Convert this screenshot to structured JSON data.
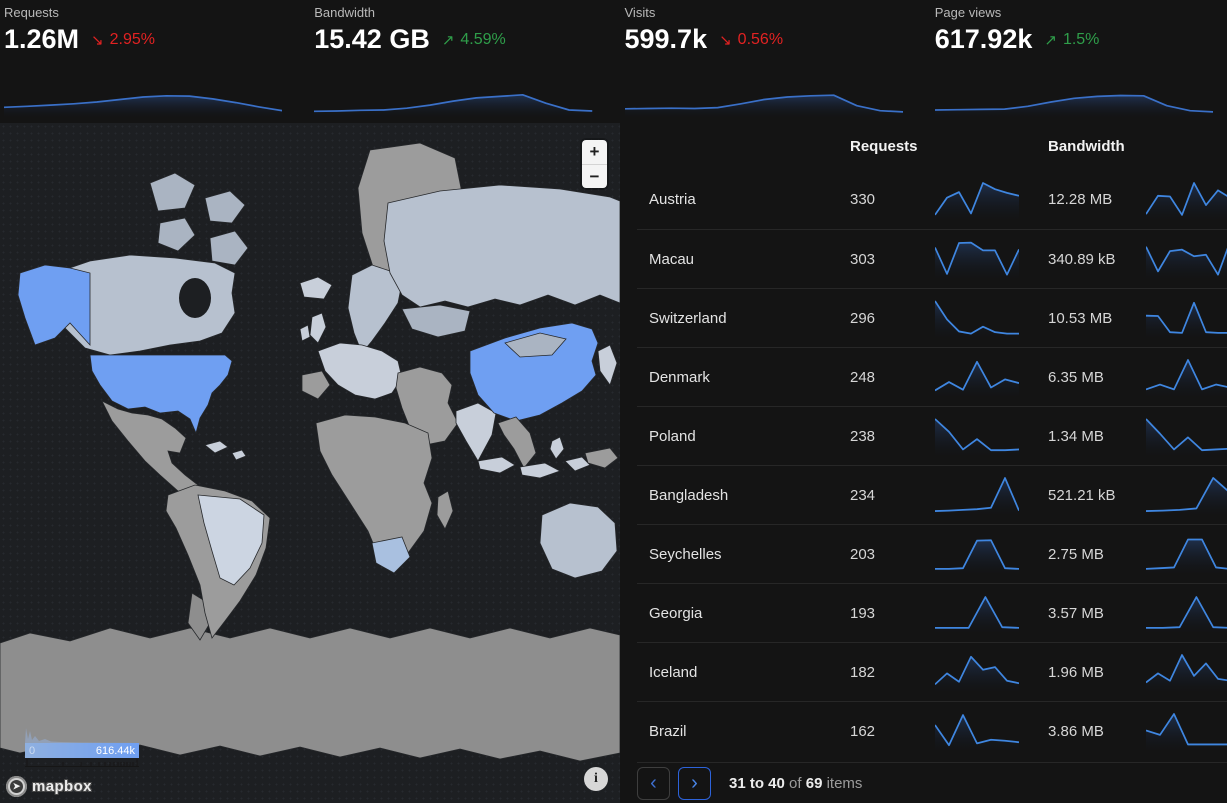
{
  "colors": {
    "accent_blue": "#6f9ff2",
    "spark_line": "#3a70c8",
    "spark_line_bright": "#3f86e0",
    "up_green": "#2f9e4a",
    "down_red": "#e22222",
    "panel_bg": "#141414",
    "ocean": "#1d1f22"
  },
  "stats": [
    {
      "label": "Requests",
      "value": "1.26M",
      "arrow": "↘",
      "delta": "2.95%",
      "direction": "down",
      "spark": [
        25,
        28,
        32,
        36,
        42,
        50,
        58,
        62,
        61,
        52,
        40,
        26,
        14
      ]
    },
    {
      "label": "Bandwidth",
      "value": "15.42 GB",
      "arrow": "↗",
      "delta": "4.59%",
      "direction": "up",
      "spark": [
        12,
        13,
        15,
        16,
        22,
        32,
        45,
        55,
        60,
        65,
        38,
        16,
        13
      ]
    },
    {
      "label": "Visits",
      "value": "599.7k",
      "arrow": "↘",
      "delta": "0.56%",
      "direction": "down",
      "spark": [
        20,
        21,
        22,
        21,
        24,
        36,
        50,
        58,
        62,
        64,
        30,
        14,
        10
      ]
    },
    {
      "label": "Page views",
      "value": "617.92k",
      "arrow": "↗",
      "delta": "1.5%",
      "direction": "up",
      "spark": [
        16,
        17,
        18,
        19,
        28,
        42,
        54,
        60,
        63,
        62,
        30,
        14,
        10
      ]
    }
  ],
  "map": {
    "zoom_in_label": "+",
    "zoom_out_label": "−",
    "legend_min": "0",
    "legend_max": "616.44k",
    "logo_text": "mapbox",
    "info_icon": "i"
  },
  "table": {
    "headers": {
      "requests": "Requests",
      "bandwidth": "Bandwidth"
    },
    "rows": [
      {
        "country": "Austria",
        "requests": "330",
        "bandwidth": "12.28 MB",
        "req_spark": [
          8,
          55,
          70,
          12,
          95,
          78,
          68,
          60
        ],
        "bw_spark": [
          10,
          60,
          58,
          8,
          95,
          35,
          75,
          55
        ]
      },
      {
        "country": "Macau",
        "requests": "303",
        "bandwidth": "340.89 kB",
        "req_spark": [
          80,
          8,
          92,
          93,
          72,
          72,
          6,
          75
        ],
        "bw_spark": [
          82,
          15,
          70,
          74,
          56,
          60,
          6,
          95
        ]
      },
      {
        "country": "Switzerland",
        "requests": "296",
        "bandwidth": "10.53 MB",
        "req_spark": [
          95,
          45,
          12,
          6,
          25,
          10,
          6,
          6
        ],
        "bw_spark": [
          55,
          54,
          10,
          8,
          90,
          10,
          8,
          8
        ]
      },
      {
        "country": "Denmark",
        "requests": "248",
        "bandwidth": "6.35 MB",
        "req_spark": [
          12,
          35,
          14,
          90,
          20,
          42,
          32
        ],
        "bw_spark": [
          15,
          28,
          15,
          95,
          15,
          28,
          20
        ]
      },
      {
        "country": "Poland",
        "requests": "238",
        "bandwidth": "1.34 MB",
        "req_spark": [
          95,
          60,
          12,
          40,
          10,
          10,
          12
        ],
        "bw_spark": [
          95,
          55,
          12,
          45,
          10,
          12,
          14
        ]
      },
      {
        "country": "Bangladesh",
        "requests": "234",
        "bandwidth": "521.21 kB",
        "req_spark": [
          5,
          6,
          8,
          10,
          14,
          95,
          6
        ],
        "bw_spark": [
          5,
          6,
          8,
          12,
          95,
          55
        ]
      },
      {
        "country": "Seychelles",
        "requests": "203",
        "bandwidth": "2.75 MB",
        "req_spark": [
          8,
          8,
          10,
          85,
          86,
          10,
          8
        ],
        "bw_spark": [
          8,
          10,
          12,
          88,
          88,
          12,
          8
        ]
      },
      {
        "country": "Georgia",
        "requests": "193",
        "bandwidth": "3.57 MB",
        "req_spark": [
          8,
          8,
          8,
          92,
          10,
          8
        ],
        "bw_spark": [
          8,
          8,
          10,
          92,
          10,
          8
        ]
      },
      {
        "country": "Iceland",
        "requests": "182",
        "bandwidth": "1.96 MB",
        "req_spark": [
          15,
          45,
          22,
          90,
          55,
          62,
          25,
          18
        ],
        "bw_spark": [
          20,
          45,
          25,
          95,
          38,
          72,
          30,
          25
        ]
      },
      {
        "country": "Brazil",
        "requests": "162",
        "bandwidth": "3.86 MB",
        "req_spark": [
          65,
          10,
          92,
          15,
          25,
          22,
          18
        ],
        "bw_spark": [
          50,
          38,
          95,
          12,
          12,
          12,
          12
        ]
      }
    ]
  },
  "pagination": {
    "prev_icon": "‹",
    "next_icon": "›",
    "range": "31 to 40",
    "of_text": "of",
    "total": "69",
    "items_text": "items"
  }
}
